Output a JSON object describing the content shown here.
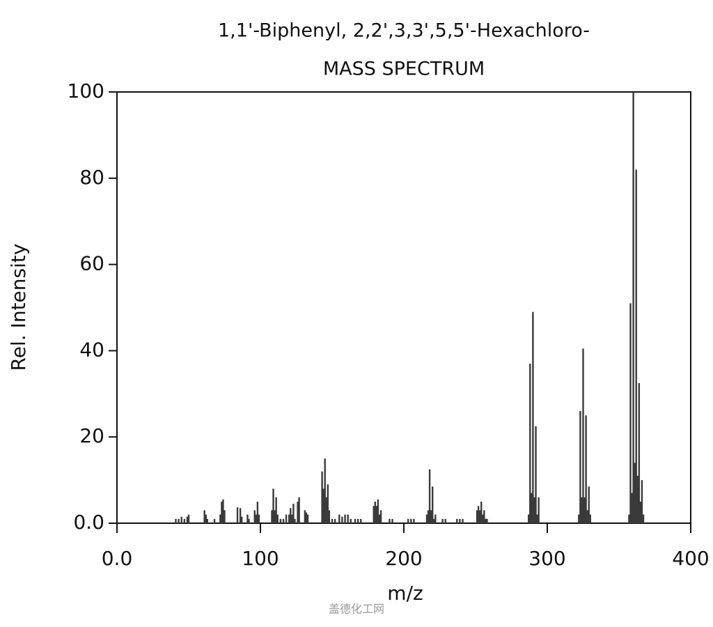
{
  "chart_data": {
    "type": "bar",
    "title": "1,1'-Biphenyl, 2,2',3,3',5,5'-Hexachloro-",
    "subtitle": "MASS SPECTRUM",
    "x_label": "m/z",
    "y_label": "Rel. Intensity",
    "watermark": "盖德化工网",
    "color": "#3a3a3a",
    "xlim": [
      0,
      400
    ],
    "ylim": [
      0,
      100
    ],
    "xticks": [
      {
        "value": 0,
        "label": "0.0"
      },
      100,
      200,
      300,
      400
    ],
    "yticks": [
      {
        "value": 0,
        "label": "0.0"
      },
      20,
      40,
      60,
      80,
      100
    ],
    "x": [
      41,
      43,
      45,
      47,
      49,
      50,
      61,
      62,
      63,
      68,
      72,
      73,
      74,
      75,
      84,
      86,
      87,
      91,
      92,
      96,
      97,
      98,
      99,
      108,
      109,
      110,
      111,
      112,
      114,
      116,
      118,
      120,
      121,
      122,
      123,
      124,
      126,
      127,
      131,
      132,
      133,
      143,
      144,
      145,
      146,
      147,
      148,
      150,
      152,
      155,
      157,
      159,
      161,
      163,
      166,
      168,
      170,
      179,
      180,
      181,
      182,
      183,
      184,
      190,
      192,
      203,
      205,
      207,
      216,
      217,
      218,
      219,
      220,
      221,
      222,
      227,
      229,
      237,
      239,
      241,
      251,
      252,
      253,
      254,
      255,
      256,
      257,
      258,
      287,
      288,
      289,
      290,
      291,
      292,
      293,
      294,
      322,
      323,
      324,
      325,
      326,
      327,
      328,
      329,
      330,
      357,
      358,
      359,
      360,
      361,
      362,
      363,
      364,
      365,
      366,
      367
    ],
    "values": [
      1,
      1,
      1.5,
      1,
      1.5,
      2,
      3,
      2,
      1,
      1,
      2,
      5,
      5.5,
      3,
      3.7,
      3.5,
      1.5,
      2,
      1,
      3,
      2,
      5,
      2,
      3,
      8,
      3,
      6,
      2,
      1,
      1,
      2,
      2,
      3.5,
      2,
      4.5,
      1,
      5,
      6,
      3,
      2.5,
      2,
      12,
      8,
      15,
      6,
      9,
      3,
      1,
      1,
      2,
      1.5,
      2,
      2,
      1,
      1,
      1,
      1,
      4,
      5,
      4,
      5.5,
      2,
      3,
      1,
      1,
      1,
      1,
      1,
      2,
      3,
      12.5,
      3,
      8.5,
      1,
      2,
      1,
      1,
      1,
      1,
      1,
      3,
      4,
      3,
      5,
      2,
      3,
      1,
      1,
      2,
      37,
      7,
      49,
      6,
      22.5,
      2,
      6,
      2,
      26,
      6,
      40.5,
      6,
      25,
      3,
      8.5,
      2,
      2,
      51,
      7,
      100,
      14,
      82,
      11,
      32.5,
      5,
      10,
      2
    ]
  }
}
